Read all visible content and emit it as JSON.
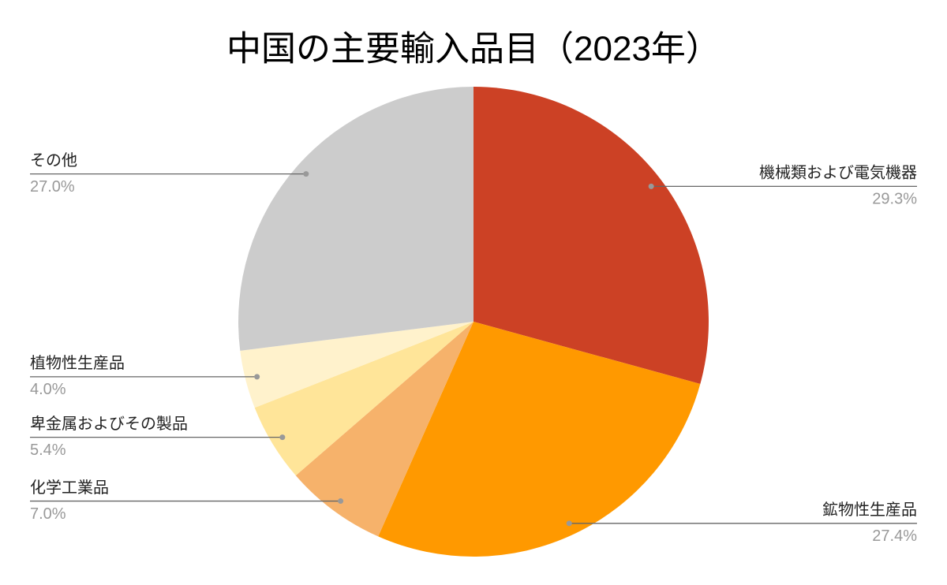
{
  "chart_data": {
    "type": "pie",
    "title": "中国の主要輸入品目（2023年）",
    "categories": [
      "機械類および電気機器",
      "鉱物性生産品",
      "化学工業品",
      "卑金属およびその製品",
      "植物性生産品",
      "その他"
    ],
    "values": [
      29.3,
      27.4,
      7.0,
      5.4,
      4.0,
      27.0
    ],
    "value_labels": [
      "29.3%",
      "27.4%",
      "7.0%",
      "5.4%",
      "4.0%",
      "27.0%"
    ],
    "colors": [
      "#cc4125",
      "#ff9900",
      "#f6b26b",
      "#ffe599",
      "#fff2cc",
      "#cccccc"
    ]
  }
}
